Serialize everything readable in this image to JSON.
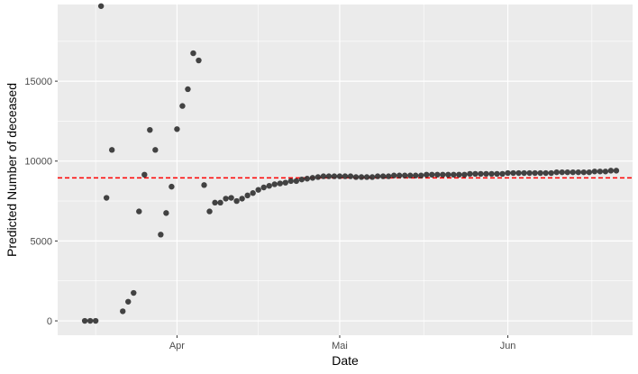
{
  "chart_data": {
    "type": "scatter",
    "xlabel": "Date",
    "ylabel": "Predicted Number of deceased",
    "x_axis": {
      "type": "date",
      "range": [
        "2020-03-10",
        "2020-06-24"
      ],
      "ticks": [
        {
          "date": "2020-04-01",
          "label": "Apr"
        },
        {
          "date": "2020-05-01",
          "label": "Mai"
        },
        {
          "date": "2020-06-01",
          "label": "Jun"
        }
      ]
    },
    "y_axis": {
      "range": [
        -900,
        19800
      ],
      "ticks": [
        0,
        5000,
        10000,
        15000
      ]
    },
    "grid": true,
    "reference_line": {
      "y": 8950,
      "color": "#ff0000",
      "style": "dashed"
    },
    "point_color": "#333333",
    "background": "#ebebeb",
    "series": [
      {
        "x": [
          "2020-03-15",
          "2020-03-16",
          "2020-03-17",
          "2020-03-18",
          "2020-03-19",
          "2020-03-20",
          "2020-03-22",
          "2020-03-23",
          "2020-03-24",
          "2020-03-25",
          "2020-03-26",
          "2020-03-27",
          "2020-03-28",
          "2020-03-29",
          "2020-03-30",
          "2020-03-31",
          "2020-04-01",
          "2020-04-02",
          "2020-04-03",
          "2020-04-04",
          "2020-04-05",
          "2020-04-06",
          "2020-04-07",
          "2020-04-08",
          "2020-04-09",
          "2020-04-10",
          "2020-04-11",
          "2020-04-12",
          "2020-04-13",
          "2020-04-14",
          "2020-04-15",
          "2020-04-16",
          "2020-04-17",
          "2020-04-18",
          "2020-04-19",
          "2020-04-20",
          "2020-04-21",
          "2020-04-22",
          "2020-04-23",
          "2020-04-24",
          "2020-04-25",
          "2020-04-26",
          "2020-04-27",
          "2020-04-28",
          "2020-04-29",
          "2020-04-30",
          "2020-05-01",
          "2020-05-02",
          "2020-05-03",
          "2020-05-04",
          "2020-05-05",
          "2020-05-06",
          "2020-05-07",
          "2020-05-08",
          "2020-05-09",
          "2020-05-10",
          "2020-05-11",
          "2020-05-12",
          "2020-05-13",
          "2020-05-14",
          "2020-05-15",
          "2020-05-16",
          "2020-05-17",
          "2020-05-18",
          "2020-05-19",
          "2020-05-20",
          "2020-05-21",
          "2020-05-22",
          "2020-05-23",
          "2020-05-24",
          "2020-05-25",
          "2020-05-26",
          "2020-05-27",
          "2020-05-28",
          "2020-05-29",
          "2020-05-30",
          "2020-05-31",
          "2020-06-01",
          "2020-06-02",
          "2020-06-03",
          "2020-06-04",
          "2020-06-05",
          "2020-06-06",
          "2020-06-07",
          "2020-06-08",
          "2020-06-09",
          "2020-06-10",
          "2020-06-11",
          "2020-06-12",
          "2020-06-13",
          "2020-06-14",
          "2020-06-15",
          "2020-06-16",
          "2020-06-17",
          "2020-06-18",
          "2020-06-19",
          "2020-06-20",
          "2020-06-21"
        ],
        "y": [
          0,
          0,
          0,
          19700,
          7700,
          10700,
          600,
          1200,
          1750,
          6850,
          9150,
          11950,
          10700,
          5400,
          6750,
          8400,
          12000,
          13450,
          14500,
          16750,
          16300,
          8500,
          6850,
          7400,
          7400,
          7650,
          7700,
          7500,
          7650,
          7850,
          8000,
          8200,
          8350,
          8450,
          8550,
          8600,
          8650,
          8750,
          8750,
          8850,
          8900,
          8950,
          9000,
          9050,
          9050,
          9050,
          9050,
          9050,
          9050,
          9000,
          9000,
          9000,
          9000,
          9050,
          9050,
          9050,
          9100,
          9100,
          9100,
          9100,
          9100,
          9100,
          9150,
          9150,
          9150,
          9150,
          9150,
          9150,
          9150,
          9150,
          9200,
          9200,
          9200,
          9200,
          9200,
          9200,
          9200,
          9250,
          9250,
          9250,
          9250,
          9250,
          9250,
          9250,
          9250,
          9250,
          9300,
          9300,
          9300,
          9300,
          9300,
          9300,
          9300,
          9350,
          9350,
          9350,
          9400,
          9400
        ]
      }
    ]
  }
}
